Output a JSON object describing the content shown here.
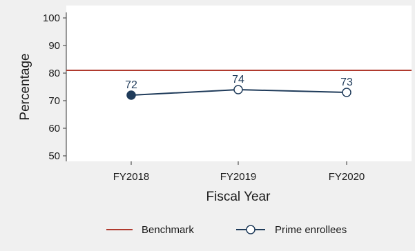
{
  "chart_data": {
    "type": "line",
    "categories": [
      "FY2018",
      "FY2019",
      "FY2020"
    ],
    "series": [
      {
        "name": "Prime enrollees",
        "values": [
          72,
          74,
          73
        ],
        "color": "#1f3b5a",
        "marker": "circle"
      }
    ],
    "data_labels": [
      "72",
      "74",
      "73"
    ],
    "benchmark": {
      "name": "Benchmark",
      "value": 81,
      "color": "#b03a2e"
    },
    "xlabel": "Fiscal Year",
    "ylabel": "Percentage",
    "ylim": [
      48,
      102
    ],
    "yticks": [
      50,
      60,
      70,
      80,
      90,
      100
    ],
    "grid": false,
    "legend_position": "bottom",
    "colors": {
      "background": "#f0f0f0",
      "plot_background": "#ffffff",
      "axis": "#333333"
    }
  }
}
